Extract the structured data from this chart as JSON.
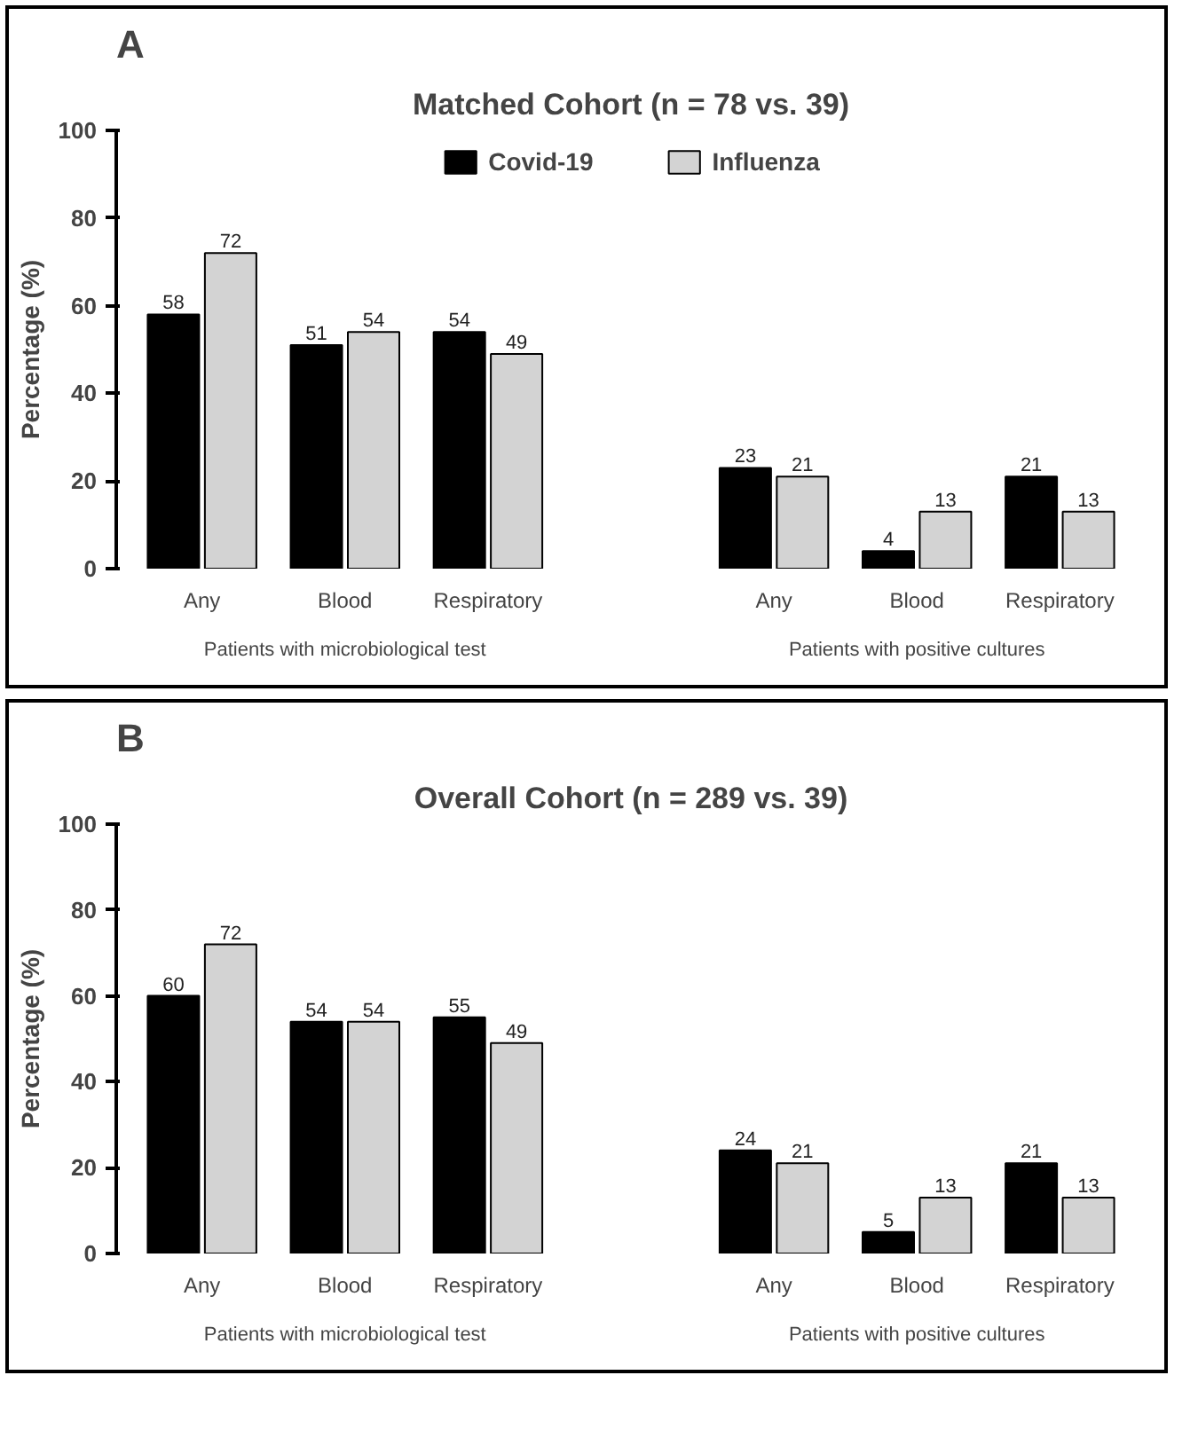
{
  "chart_data": [
    {
      "type": "bar",
      "title": "Matched Cohort (n = 78 vs. 39)",
      "ylabel": "Percentage (%)",
      "annotations": [
        "A",
        "Patients with microbiological test",
        "Patients with positive cultures"
      ],
      "categories": [
        "Any",
        "Blood",
        "Respiratory",
        null,
        "Any",
        "Blood",
        "Respiratory"
      ],
      "series": [
        {
          "name": "Covid-19",
          "color": "#000000",
          "values": [
            58,
            51,
            54,
            null,
            23,
            4,
            21
          ]
        },
        {
          "name": "Influenza",
          "color": "#d3d3d3",
          "values": [
            72,
            54,
            49,
            null,
            21,
            13,
            13
          ]
        }
      ],
      "ylim": [
        0,
        100
      ],
      "yticks": [
        0,
        20,
        40,
        60,
        80,
        100
      ],
      "data_labels": true,
      "legend": "top",
      "grid": false
    },
    {
      "type": "bar",
      "title": "Overall Cohort (n = 289 vs. 39)",
      "ylabel": "Percentage (%)",
      "annotations": [
        "B",
        "Patients with microbiological test",
        "Patients with positive cultures"
      ],
      "categories": [
        "Any",
        "Blood",
        "Respiratory",
        null,
        "Any",
        "Blood",
        "Respiratory"
      ],
      "series": [
        {
          "color": "#000000",
          "values": [
            60,
            54,
            55,
            null,
            24,
            5,
            21
          ]
        },
        {
          "color": "#d3d3d3",
          "values": [
            72,
            54,
            49,
            null,
            21,
            13,
            13
          ]
        }
      ],
      "ylim": [
        0,
        100
      ],
      "yticks": [
        0,
        20,
        40,
        60,
        80,
        100
      ],
      "data_labels": true,
      "legend": false,
      "grid": false
    }
  ]
}
